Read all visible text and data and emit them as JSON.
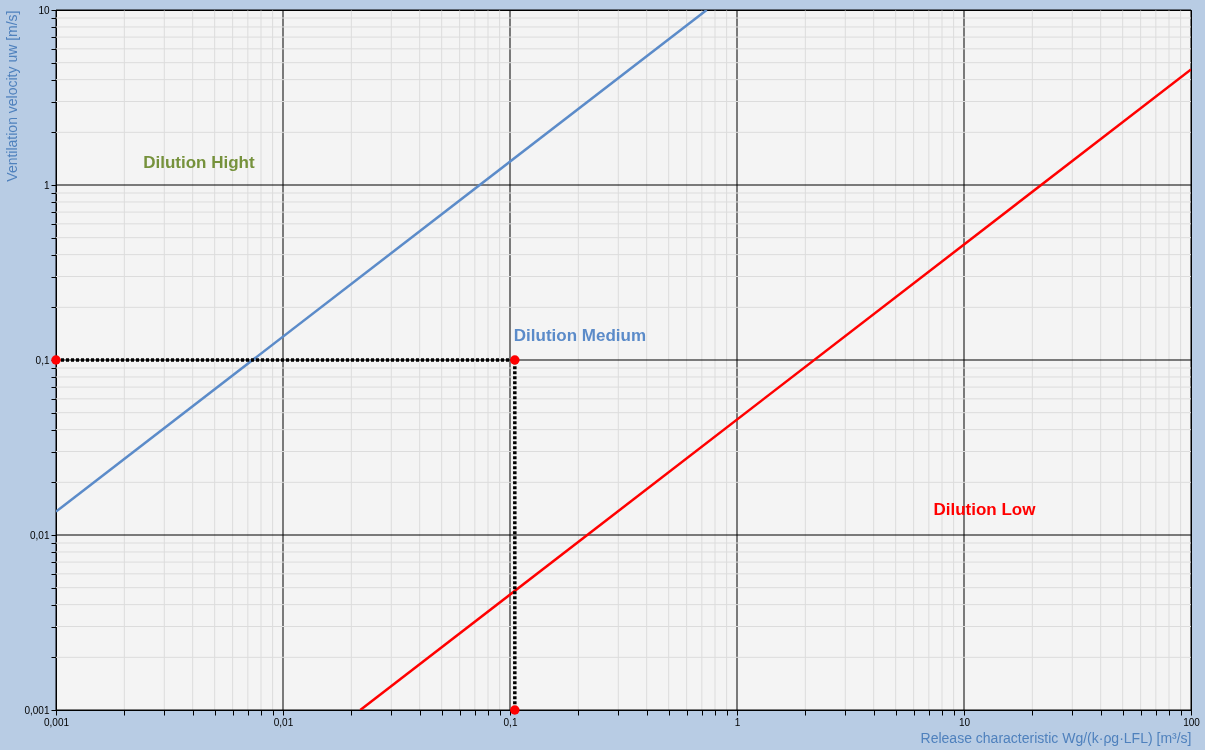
{
  "chart_data": {
    "type": "line",
    "xlabel": "Release characteristic  Wg/(k·ρg·LFL)  [m³/s]",
    "ylabel": "Ventilation velocity uw [m/s]",
    "log": "xy",
    "grid": true,
    "xlim": [
      0.001,
      100
    ],
    "ylim": [
      0.001,
      10
    ],
    "xticks": [
      {
        "value": 0.001,
        "label": "0,001"
      },
      {
        "value": 0.002,
        "label": null
      },
      {
        "value": 0.003,
        "label": null
      },
      {
        "value": 0.004,
        "label": null
      },
      {
        "value": 0.005,
        "label": null
      },
      {
        "value": 0.006,
        "label": null
      },
      {
        "value": 0.007,
        "label": null
      },
      {
        "value": 0.008,
        "label": null
      },
      {
        "value": 0.009,
        "label": null
      },
      {
        "value": 0.01,
        "label": "0,01"
      },
      {
        "value": 0.02,
        "label": null
      },
      {
        "value": 0.03,
        "label": null
      },
      {
        "value": 0.04,
        "label": null
      },
      {
        "value": 0.05,
        "label": null
      },
      {
        "value": 0.06,
        "label": null
      },
      {
        "value": 0.07,
        "label": null
      },
      {
        "value": 0.08,
        "label": null
      },
      {
        "value": 0.09,
        "label": null
      },
      {
        "value": 0.1,
        "label": "0,1"
      },
      {
        "value": 0.2,
        "label": null
      },
      {
        "value": 0.3,
        "label": null
      },
      {
        "value": 0.4,
        "label": null
      },
      {
        "value": 0.5,
        "label": null
      },
      {
        "value": 0.6,
        "label": null
      },
      {
        "value": 0.7,
        "label": null
      },
      {
        "value": 0.8,
        "label": null
      },
      {
        "value": 0.9,
        "label": null
      },
      1,
      {
        "value": 2,
        "label": null
      },
      {
        "value": 3,
        "label": null
      },
      {
        "value": 4,
        "label": null
      },
      {
        "value": 5,
        "label": null
      },
      {
        "value": 6,
        "label": null
      },
      {
        "value": 7,
        "label": null
      },
      {
        "value": 8,
        "label": null
      },
      {
        "value": 9,
        "label": null
      },
      10,
      {
        "value": 20,
        "label": null
      },
      {
        "value": 30,
        "label": null
      },
      {
        "value": 40,
        "label": null
      },
      {
        "value": 50,
        "label": null
      },
      {
        "value": 60,
        "label": null
      },
      {
        "value": 70,
        "label": null
      },
      {
        "value": 80,
        "label": null
      },
      {
        "value": 90,
        "label": null
      },
      100
    ],
    "yticks": [
      {
        "value": 0.001,
        "label": "0,001"
      },
      {
        "value": 0.002,
        "label": null
      },
      {
        "value": 0.003,
        "label": null
      },
      {
        "value": 0.004,
        "label": null
      },
      {
        "value": 0.005,
        "label": null
      },
      {
        "value": 0.006,
        "label": null
      },
      {
        "value": 0.007,
        "label": null
      },
      {
        "value": 0.008,
        "label": null
      },
      {
        "value": 0.009,
        "label": null
      },
      {
        "value": 0.01,
        "label": "0,01"
      },
      {
        "value": 0.02,
        "label": null
      },
      {
        "value": 0.03,
        "label": null
      },
      {
        "value": 0.04,
        "label": null
      },
      {
        "value": 0.05,
        "label": null
      },
      {
        "value": 0.06,
        "label": null
      },
      {
        "value": 0.07,
        "label": null
      },
      {
        "value": 0.08,
        "label": null
      },
      {
        "value": 0.09,
        "label": null
      },
      {
        "value": 0.1,
        "label": "0,1"
      },
      {
        "value": 0.2,
        "label": null
      },
      {
        "value": 0.3,
        "label": null
      },
      {
        "value": 0.4,
        "label": null
      },
      {
        "value": 0.5,
        "label": null
      },
      {
        "value": 0.6,
        "label": null
      },
      {
        "value": 0.7,
        "label": null
      },
      {
        "value": 0.8,
        "label": null
      },
      {
        "value": 0.9,
        "label": null
      },
      1,
      {
        "value": 2,
        "label": null
      },
      {
        "value": 3,
        "label": null
      },
      {
        "value": 4,
        "label": null
      },
      {
        "value": 5,
        "label": null
      },
      {
        "value": 6,
        "label": null
      },
      {
        "value": 7,
        "label": null
      },
      {
        "value": 8,
        "label": null
      },
      {
        "value": 9,
        "label": null
      },
      10
    ],
    "series": [
      {
        "color": "#5b8bc9",
        "marker": "none",
        "line_style": "solid",
        "x": [
          0.001,
          0.735
        ],
        "values": [
          0.0136,
          10
        ]
      },
      {
        "color": "#ff0000",
        "marker": "none",
        "line_style": "solid",
        "x": [
          0.0219,
          100
        ],
        "values": [
          0.001,
          4.57
        ]
      },
      {
        "color": "#000000",
        "marker": "none",
        "line_style": "dotted",
        "x": [
          0.001,
          0.105,
          0.105
        ],
        "values": [
          0.1,
          0.1,
          0.001
        ]
      },
      {
        "type": "scatter",
        "color": "#ff0000",
        "marker": "circle",
        "x": [
          0.001,
          0.105,
          0.105
        ],
        "values": [
          0.1,
          0.1,
          0.001
        ]
      }
    ],
    "annotations": [
      "Dilution Hight",
      "Dilution Medium",
      "Dilution Low"
    ]
  }
}
